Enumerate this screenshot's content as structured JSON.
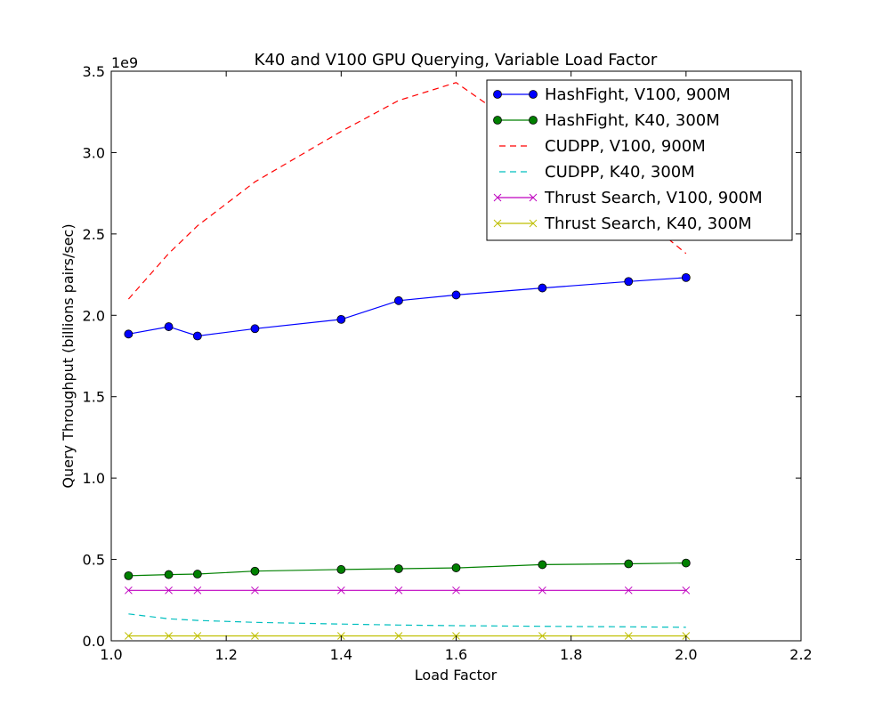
{
  "chart_data": {
    "type": "line",
    "title": "K40 and V100 GPU Querying, Variable Load Factor",
    "xlabel": "Load Factor",
    "ylabel": "Query Throughput (billions pairs/sec)",
    "y_offset_label": "1e9",
    "xlim": [
      1.0,
      2.2
    ],
    "ylim": [
      0.0,
      3.5
    ],
    "xticks": [
      "1.0",
      "1.2",
      "1.4",
      "1.6",
      "1.8",
      "2.0",
      "2.2"
    ],
    "yticks": [
      "0.0",
      "0.5",
      "1.0",
      "1.5",
      "2.0",
      "2.5",
      "3.0",
      "3.5"
    ],
    "grid": false,
    "legend_position": "top-right",
    "x": [
      1.03,
      1.1,
      1.15,
      1.25,
      1.4,
      1.5,
      1.6,
      1.75,
      1.9,
      2.0
    ],
    "series": [
      {
        "name": "HashFight, V100, 900M",
        "color": "#0000ff",
        "style": "solid",
        "marker": "circle",
        "values": [
          1.885,
          1.93,
          1.873,
          1.918,
          1.975,
          2.09,
          2.125,
          2.168,
          2.208,
          2.232
        ]
      },
      {
        "name": "HashFight, K40, 300M",
        "color": "#008000",
        "style": "solid",
        "marker": "circle",
        "values": [
          0.4,
          0.407,
          0.41,
          0.428,
          0.438,
          0.443,
          0.448,
          0.468,
          0.473,
          0.478
        ]
      },
      {
        "name": "CUDPP, V100, 900M",
        "color": "#ff0000",
        "style": "dashed",
        "marker": "none",
        "values": [
          2.1,
          2.38,
          2.55,
          2.82,
          3.13,
          3.32,
          3.43,
          3.06,
          2.67,
          2.38
        ]
      },
      {
        "name": "CUDPP, K40, 300M",
        "color": "#00bfbf",
        "style": "dashed",
        "marker": "none",
        "values": [
          0.165,
          0.135,
          0.125,
          0.113,
          0.103,
          0.097,
          0.093,
          0.089,
          0.086,
          0.083
        ]
      },
      {
        "name": "Thrust Search, V100, 900M",
        "color": "#bf00bf",
        "style": "solid",
        "marker": "x",
        "values": [
          0.31,
          0.31,
          0.31,
          0.31,
          0.31,
          0.31,
          0.31,
          0.31,
          0.31,
          0.31
        ]
      },
      {
        "name": "Thrust Search, K40, 300M",
        "color": "#bfbf00",
        "style": "solid",
        "marker": "x",
        "values": [
          0.03,
          0.03,
          0.03,
          0.03,
          0.03,
          0.03,
          0.03,
          0.03,
          0.03,
          0.03
        ]
      }
    ]
  }
}
